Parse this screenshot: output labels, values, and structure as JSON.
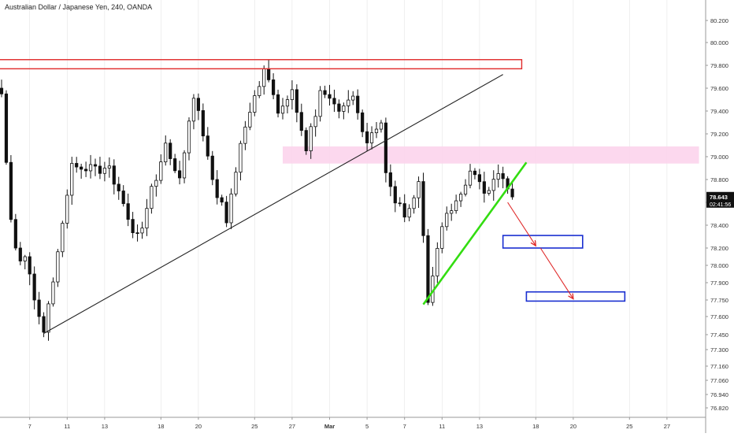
{
  "chart_data": {
    "type": "candlestick",
    "title": "Australian Dollar / Japanese Yen, 240, OANDA",
    "x_axis": {
      "ticks": [
        {
          "label": "7",
          "bar": 6
        },
        {
          "label": "11",
          "bar": 14
        },
        {
          "label": "13",
          "bar": 22
        },
        {
          "label": "18",
          "bar": 34
        },
        {
          "label": "20",
          "bar": 42
        },
        {
          "label": "25",
          "bar": 54
        },
        {
          "label": "27",
          "bar": 62
        },
        {
          "label": "Mar",
          "bar": 70
        },
        {
          "label": "5",
          "bar": 78
        },
        {
          "label": "7",
          "bar": 86
        },
        {
          "label": "11",
          "bar": 94
        },
        {
          "label": "13",
          "bar": 102
        },
        {
          "label": "18",
          "bar": 114
        },
        {
          "label": "20",
          "bar": 122
        },
        {
          "label": "25",
          "bar": 134
        },
        {
          "label": "27",
          "bar": 142
        }
      ],
      "bar_range": [
        -1,
        149
      ]
    },
    "y_axis": {
      "position": "right",
      "range": [
        76.72,
        80.34
      ],
      "ticks": [
        "80.200",
        "80.000",
        "79.800",
        "79.600",
        "79.400",
        "79.200",
        "79.000",
        "78.800",
        "78.600",
        "78.400",
        "78.200",
        "78.000",
        "77.900",
        "77.750",
        "77.600",
        "77.450",
        "77.300",
        "77.160",
        "77.060",
        "76.940",
        "76.820"
      ]
    },
    "last_price": {
      "label": "78.643",
      "value": 78.643,
      "countdown": "02:41:56"
    },
    "key_points": [
      {
        "bar": 9,
        "price": 77.47
      },
      {
        "bar": 15,
        "price": 78.9
      },
      {
        "bar": 23,
        "price": 78.9
      },
      {
        "bar": 29,
        "price": 78.28
      },
      {
        "bar": 35,
        "price": 79.1
      },
      {
        "bar": 38,
        "price": 78.82
      },
      {
        "bar": 41,
        "price": 79.55
      },
      {
        "bar": 46,
        "price": 78.67
      },
      {
        "bar": 48,
        "price": 78.45
      },
      {
        "bar": 52,
        "price": 79.3
      },
      {
        "bar": 56,
        "price": 79.78
      },
      {
        "bar": 59,
        "price": 79.4
      },
      {
        "bar": 62,
        "price": 79.55
      },
      {
        "bar": 65,
        "price": 79.08
      },
      {
        "bar": 68,
        "price": 79.55
      },
      {
        "bar": 72,
        "price": 79.37
      },
      {
        "bar": 75,
        "price": 79.55
      },
      {
        "bar": 78,
        "price": 79.1
      },
      {
        "bar": 81,
        "price": 79.35
      },
      {
        "bar": 82,
        "price": 78.85
      },
      {
        "bar": 86,
        "price": 78.43
      },
      {
        "bar": 89,
        "price": 78.75
      },
      {
        "bar": 91,
        "price": 77.78
      },
      {
        "bar": 94,
        "price": 78.37
      },
      {
        "bar": 97,
        "price": 78.65
      },
      {
        "bar": 100,
        "price": 78.87
      },
      {
        "bar": 103,
        "price": 78.68
      },
      {
        "bar": 106,
        "price": 78.9
      },
      {
        "bar": 109,
        "price": 78.67
      }
    ],
    "annotations": {
      "resistance_box": {
        "price_top": 79.85,
        "price_bottom": 79.77,
        "bar_start": -1,
        "bar_end": 111,
        "color": "#e02a2a"
      },
      "support_zone": {
        "price_top": 79.09,
        "price_bottom": 78.94,
        "bar_start": 60,
        "bar_end": 149,
        "color": "#fcd4ec"
      },
      "black_trendline": {
        "from": {
          "bar": 9,
          "price": 77.46
        },
        "to": {
          "bar": 107,
          "price": 79.72
        },
        "color": "#222222"
      },
      "green_trendline": {
        "from": {
          "bar": 90,
          "price": 77.71
        },
        "to": {
          "bar": 112,
          "price": 78.95
        },
        "color": "#33dd11"
      },
      "target_boxes": [
        {
          "price_top": 78.31,
          "price_bottom": 78.2,
          "bar_start": 107,
          "bar_end": 124,
          "color": "#1a2fd0"
        },
        {
          "price_top": 77.82,
          "price_bottom": 77.74,
          "bar_start": 112,
          "bar_end": 133,
          "color": "#1a2fd0"
        }
      ],
      "arrows": [
        {
          "from": {
            "bar": 108,
            "price": 78.6
          },
          "to": {
            "bar": 114,
            "price": 78.22
          },
          "color": "#e02a2a"
        },
        {
          "from": {
            "bar": 115,
            "price": 78.2
          },
          "to": {
            "bar": 122,
            "price": 77.76
          },
          "color": "#e02a2a"
        }
      ]
    },
    "colors": {
      "candle": "#111111",
      "grid": "#e4e4e4",
      "axis_text": "#333333",
      "price_label_bg": "#111111",
      "price_label_text": "#ffffff"
    }
  }
}
